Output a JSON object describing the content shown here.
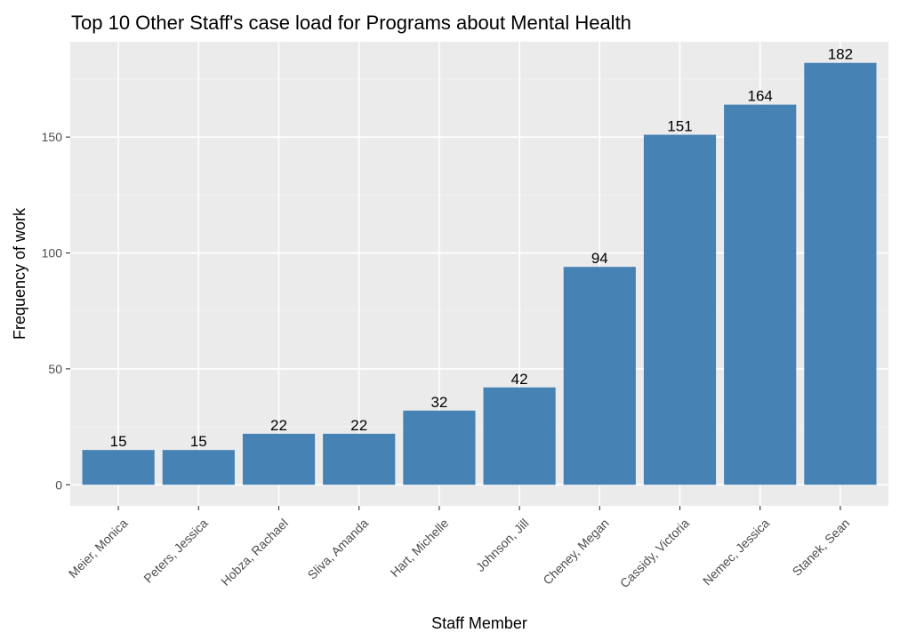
{
  "chart_data": {
    "type": "bar",
    "title": "Top 10 Other Staff's case load for Programs about Mental Health",
    "xlabel": "Staff Member",
    "ylabel": "Frequency of work",
    "categories": [
      "Meier, Monica",
      "Peters, Jessica",
      "Hobza, Rachael",
      "Sliva, Amanda",
      "Hart, Michelle",
      "Johnson, Jill",
      "Cheney, Megan",
      "Cassidy, Victoria",
      "Nemec, Jessica",
      "Stanek, Sean"
    ],
    "values": [
      15,
      15,
      22,
      22,
      32,
      42,
      94,
      151,
      164,
      182
    ],
    "data_labels": [
      "15",
      "15",
      "22",
      "22",
      "32",
      "42",
      "94",
      "151",
      "164",
      "182"
    ],
    "y_ticks": [
      0,
      50,
      100,
      150
    ],
    "y_tick_labels": [
      "0",
      "50",
      "100",
      "150"
    ],
    "ylim": [
      -9.1,
      191.1
    ],
    "grid": true,
    "legend": "none",
    "colors": {
      "bar": "#4682B4",
      "panel_background": "#EBEBEB",
      "grid_major": "#FFFFFF",
      "grid_minor": "#F4F4F4",
      "tick_text": "#4D4D4D",
      "text": "#000000"
    }
  }
}
